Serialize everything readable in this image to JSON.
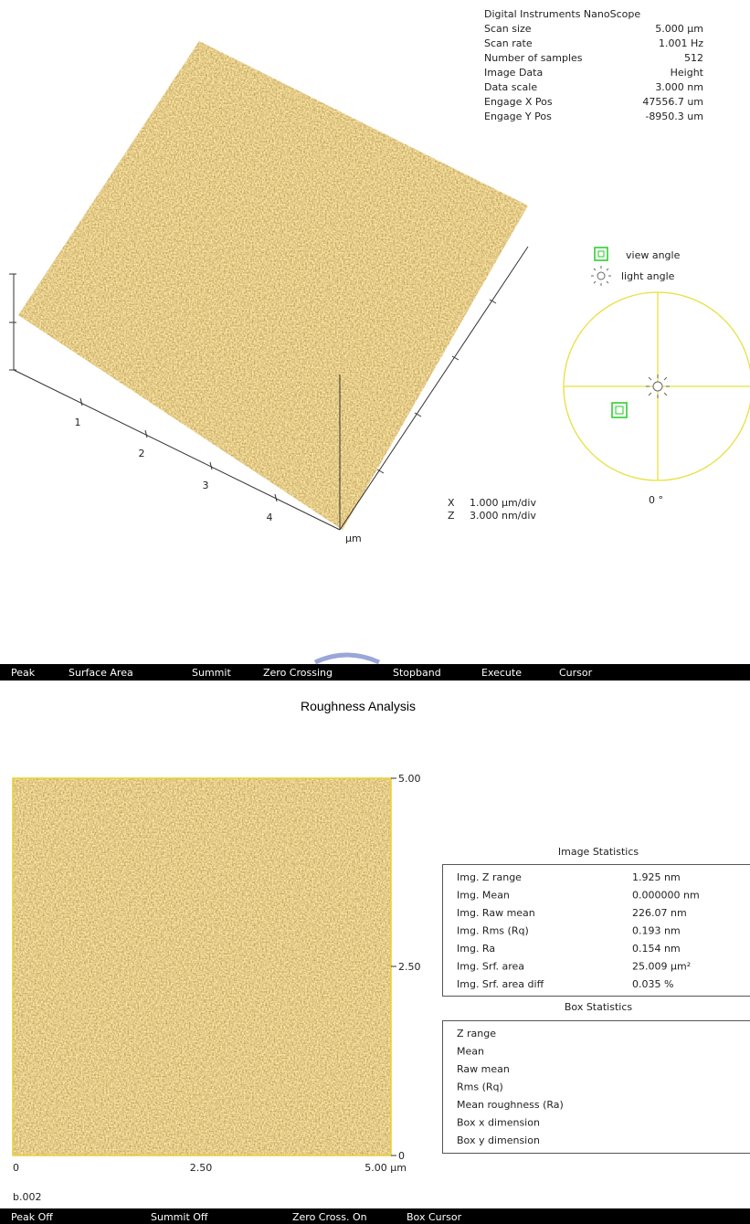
{
  "info": {
    "title": "Digital Instruments NanoScope",
    "rows": [
      [
        "Scan size",
        "5.000 µm"
      ],
      [
        "Scan rate",
        "1.001 Hz"
      ],
      [
        "Number of samples",
        "512"
      ],
      [
        "Image Data",
        "Height"
      ],
      [
        "Data scale",
        "3.000 nm"
      ],
      [
        "Engage X Pos",
        "47556.7 um"
      ],
      [
        "Engage Y Pos",
        "-8950.3 um"
      ]
    ]
  },
  "view3d": {
    "axis_labels": [
      "1",
      "2",
      "3",
      "4"
    ],
    "unit": "µm",
    "scale": [
      [
        "X",
        "1.000 µm/div"
      ],
      [
        "Z",
        "3.000 nm/div"
      ]
    ]
  },
  "angles": {
    "view": "view angle",
    "light": "light angle",
    "degree": "0 °"
  },
  "menu_top": [
    "Peak",
    "Surface Area",
    "Summit",
    "Zero Crossing",
    "Stopband",
    "Execute",
    "Cursor"
  ],
  "title": "Roughness Analysis",
  "image2d": {
    "y_labels": [
      "5.00",
      "2.50",
      "0"
    ],
    "x_labels": [
      "0",
      "2.50",
      "5.00 µm"
    ],
    "name": "b.002"
  },
  "image_stats": {
    "title": "Image Statistics",
    "rows": [
      [
        "Img. Z range",
        "1.925 nm"
      ],
      [
        "Img. Mean",
        "0.000000 nm"
      ],
      [
        "Img. Raw mean",
        "226.07 nm"
      ],
      [
        "Img. Rms (Rq)",
        "0.193 nm"
      ],
      [
        "Img. Ra",
        "0.154 nm"
      ],
      [
        "Img. Srf. area",
        "25.009 µm²"
      ],
      [
        "Img. Srf. area diff",
        "0.035 %"
      ]
    ]
  },
  "box_stats": {
    "title": "Box Statistics",
    "rows": [
      "Z range",
      "Mean",
      "Raw mean",
      "Rms (Rq)",
      "Mean roughness (Ra)",
      "Box x dimension",
      "Box y dimension"
    ]
  },
  "menu_bottom": [
    "Peak Off",
    "Summit Off",
    "Zero Cross. On",
    "Box Cursor"
  ]
}
